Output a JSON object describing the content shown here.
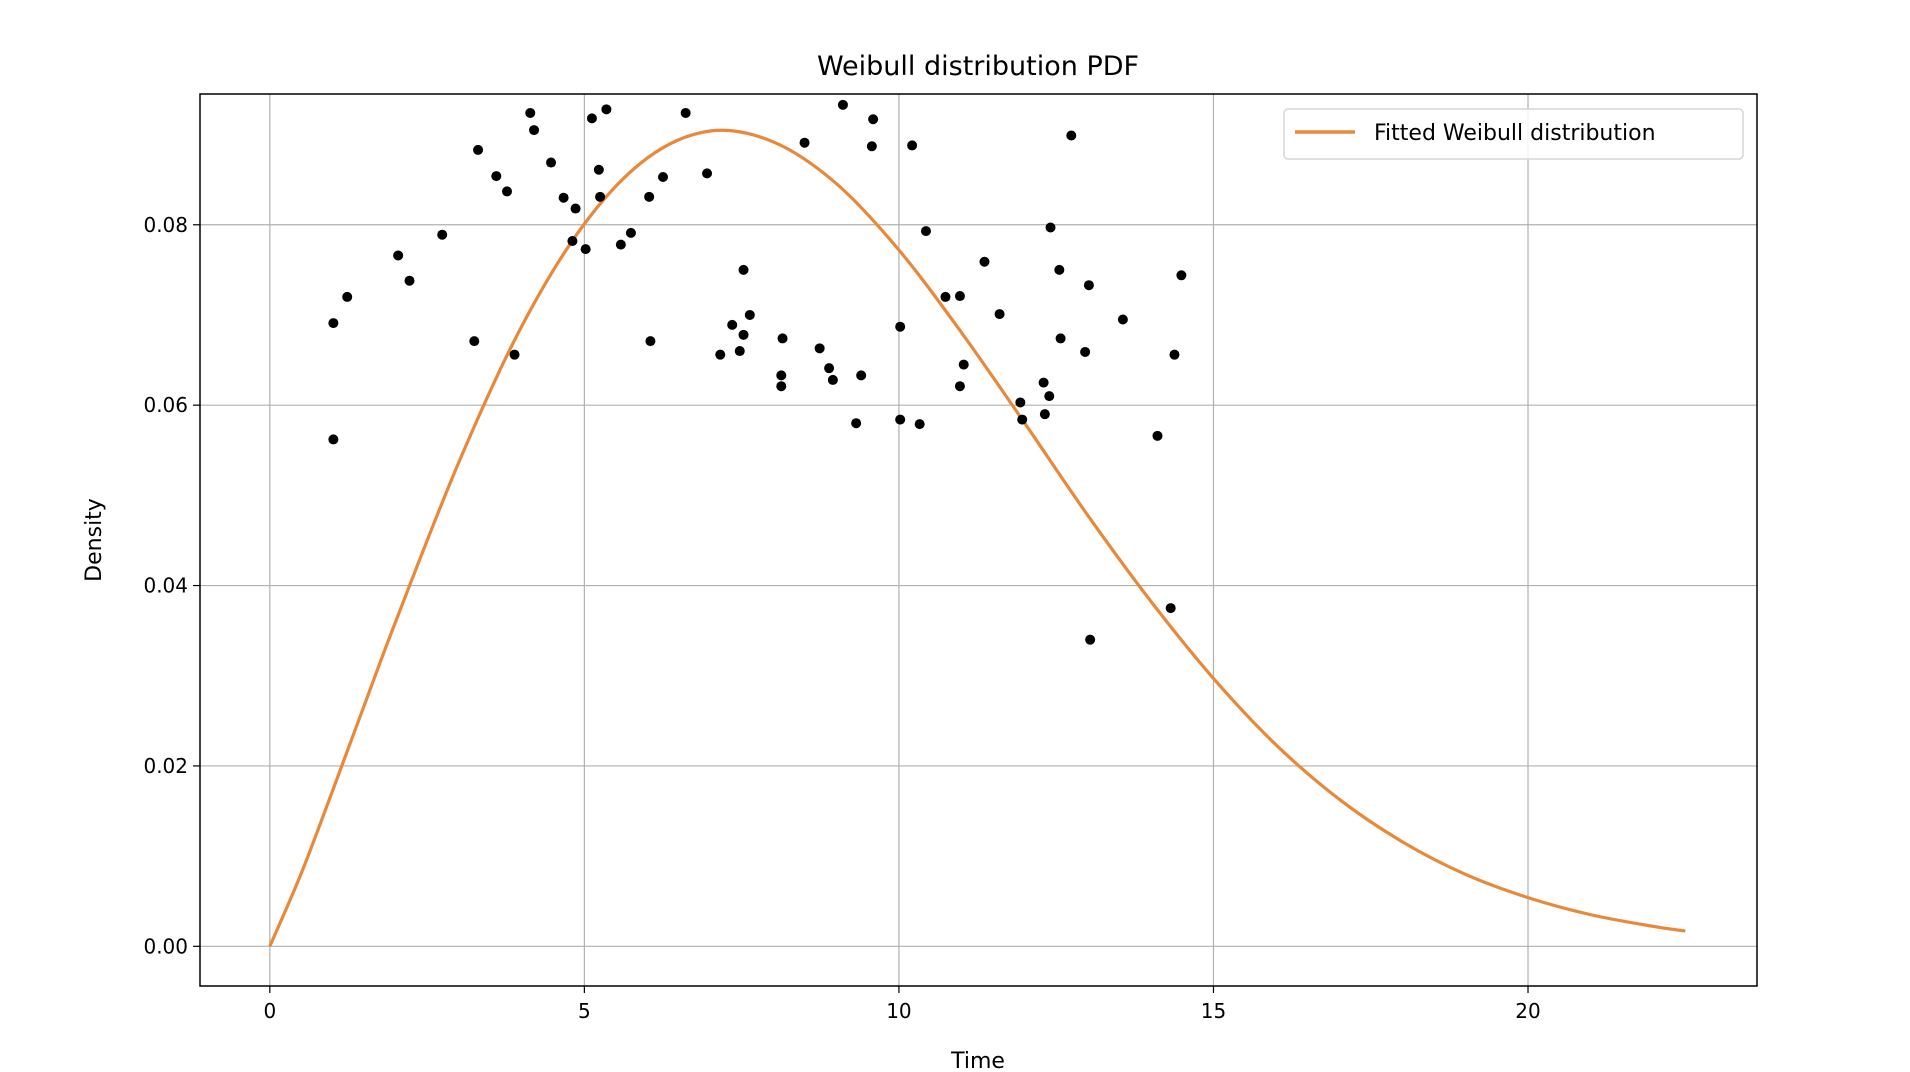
{
  "chart_data": {
    "type": "scatter+line",
    "title": "Weibull distribution PDF",
    "xlabel": "Time",
    "ylabel": "Density",
    "xlim": [
      -1.11,
      23.64
    ],
    "ylim": [
      -0.0044,
      0.0945
    ],
    "xticks": [
      0,
      5,
      10,
      15,
      20
    ],
    "xtick_labels": [
      "0",
      "5",
      "10",
      "15",
      "20"
    ],
    "yticks": [
      0.0,
      0.02,
      0.04,
      0.06,
      0.08
    ],
    "ytick_labels": [
      "0.00",
      "0.02",
      "0.04",
      "0.06",
      "0.08"
    ],
    "grid": true,
    "legend": {
      "placement": "top-right",
      "entries": [
        "Fitted Weibull distribution"
      ]
    },
    "colors": {
      "line": "#e8883a",
      "points": "#000000",
      "grid": "#b0b0b0"
    },
    "series": [
      {
        "name": "Fitted Weibull distribution",
        "kind": "line",
        "x": [
          0,
          0.5,
          1,
          1.5,
          2,
          3,
          4,
          5,
          6,
          7,
          8,
          9,
          10,
          11,
          12,
          13,
          14,
          15,
          16,
          17,
          18,
          19,
          20,
          21,
          22,
          22.5
        ],
        "y": [
          0,
          0.0081,
          0.0173,
          0.0267,
          0.036,
          0.0536,
          0.0687,
          0.0801,
          0.0874,
          0.0904,
          0.0892,
          0.0846,
          0.0772,
          0.068,
          0.058,
          0.0478,
          0.0383,
          0.0297,
          0.0223,
          0.0163,
          0.0116,
          0.008,
          0.0054,
          0.0035,
          0.0022,
          0.0017
        ]
      },
      {
        "kind": "scatter",
        "x": [
          1.01,
          1.01,
          1.23,
          2.04,
          2.22,
          2.74,
          3.25,
          3.31,
          3.6,
          3.77,
          3.89,
          4.14,
          4.2,
          4.47,
          4.67,
          4.81,
          4.86,
          5.02,
          5.12,
          5.23,
          5.25,
          5.35,
          5.58,
          5.74,
          6.03,
          6.05,
          6.25,
          6.61,
          6.95,
          7.16,
          7.35,
          7.47,
          7.53,
          7.53,
          7.63,
          8.13,
          8.13,
          8.15,
          8.5,
          8.74,
          8.89,
          8.95,
          9.11,
          9.32,
          9.4,
          9.57,
          9.59,
          10.02,
          10.02,
          10.21,
          10.33,
          10.43,
          10.74,
          10.97,
          10.97,
          11.03,
          11.36,
          11.6,
          11.93,
          11.96,
          12.3,
          12.32,
          12.39,
          12.41,
          12.55,
          12.57,
          12.74,
          12.96,
          13.02,
          13.04,
          13.56,
          14.11,
          14.32,
          14.38,
          14.49
        ],
        "y": [
          0.0562,
          0.0691,
          0.072,
          0.0766,
          0.0738,
          0.0789,
          0.0671,
          0.0883,
          0.0854,
          0.0837,
          0.0656,
          0.0924,
          0.0905,
          0.0869,
          0.083,
          0.0782,
          0.0818,
          0.0773,
          0.0918,
          0.0861,
          0.0831,
          0.0928,
          0.0778,
          0.0791,
          0.0831,
          0.0671,
          0.0853,
          0.0924,
          0.0857,
          0.0656,
          0.0689,
          0.066,
          0.075,
          0.0678,
          0.07,
          0.0621,
          0.0633,
          0.0674,
          0.0891,
          0.0663,
          0.0641,
          0.0628,
          0.0933,
          0.058,
          0.0633,
          0.0887,
          0.0917,
          0.0687,
          0.0584,
          0.0888,
          0.0579,
          0.0793,
          0.072,
          0.0721,
          0.0621,
          0.0645,
          0.0759,
          0.0701,
          0.0603,
          0.0584,
          0.0625,
          0.059,
          0.061,
          0.0797,
          0.075,
          0.0674,
          0.0899,
          0.0659,
          0.0733,
          0.034,
          0.0695,
          0.0566,
          0.0375,
          0.0656,
          0.0744
        ]
      }
    ]
  }
}
